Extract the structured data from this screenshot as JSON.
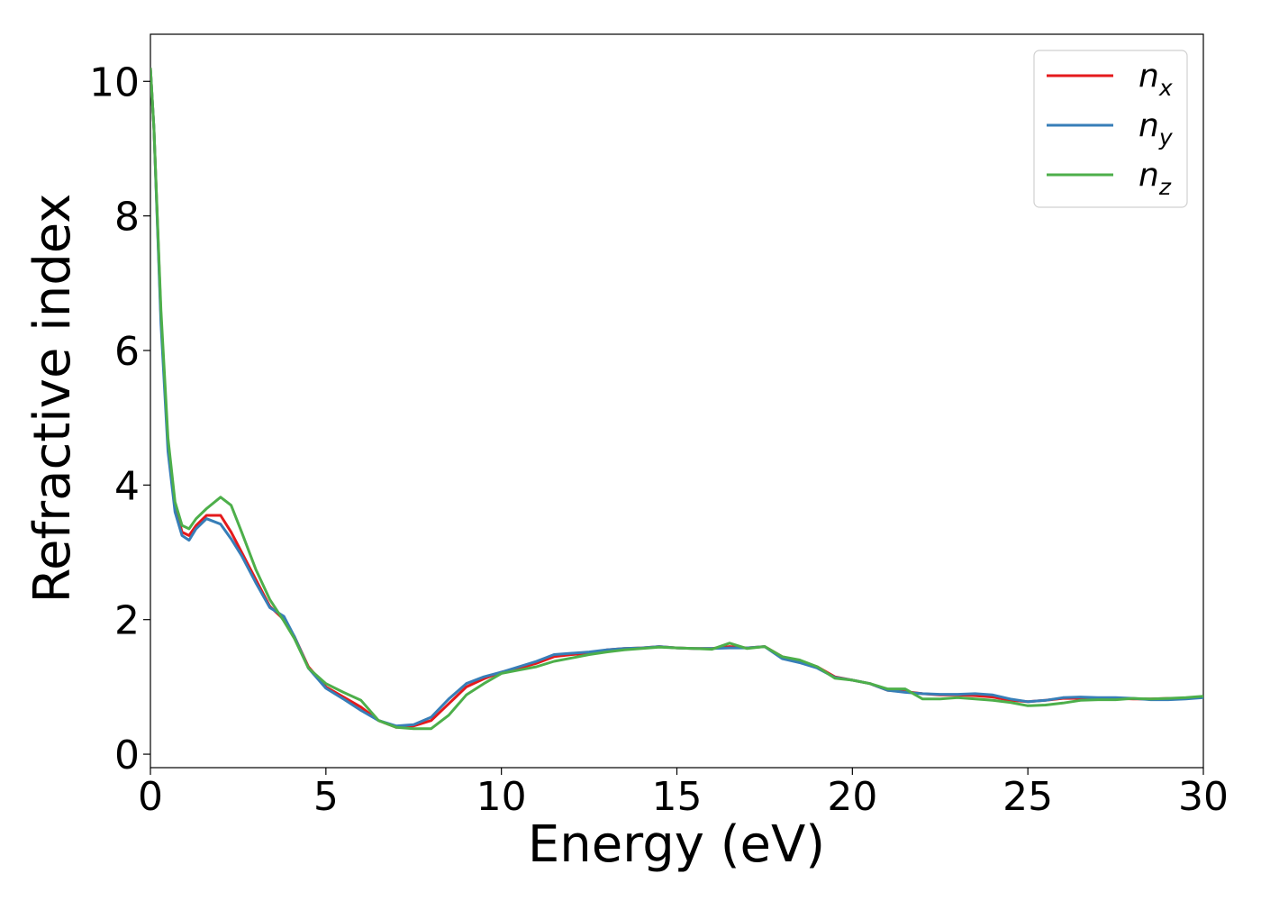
{
  "chart_data": {
    "type": "line",
    "xlabel": "Energy (eV)",
    "ylabel": "Refractive index",
    "xlim": [
      0,
      30
    ],
    "ylim": [
      -0.2,
      10.7
    ],
    "xticks": [
      "0",
      "5",
      "10",
      "15",
      "20",
      "25",
      "30"
    ],
    "yticks": [
      "0",
      "2",
      "4",
      "6",
      "8",
      "10"
    ],
    "grid": false,
    "legend_position": "top-right",
    "series": [
      {
        "name": "n_x",
        "legend_base": "n",
        "legend_sub": "x",
        "color": "#e41a1c",
        "x": [
          0.0,
          0.1,
          0.3,
          0.5,
          0.7,
          0.9,
          1.1,
          1.3,
          1.6,
          2.0,
          2.3,
          2.6,
          3.0,
          3.4,
          3.8,
          4.1,
          4.5,
          5.0,
          5.5,
          6.0,
          6.5,
          7.0,
          7.5,
          8.0,
          8.5,
          9.0,
          9.5,
          10.0,
          10.5,
          11.0,
          11.5,
          12.0,
          12.5,
          13.0,
          13.5,
          14.0,
          14.5,
          15.0,
          15.5,
          16.0,
          16.5,
          17.0,
          17.5,
          18.0,
          18.5,
          19.0,
          19.5,
          20.0,
          20.5,
          21.0,
          21.5,
          22.0,
          22.5,
          23.0,
          23.5,
          24.0,
          24.5,
          25.0,
          25.5,
          26.0,
          26.5,
          27.0,
          27.5,
          28.0,
          28.5,
          29.0,
          29.5,
          30.0
        ],
        "y": [
          10.2,
          9.3,
          6.5,
          4.6,
          3.7,
          3.3,
          3.25,
          3.4,
          3.55,
          3.55,
          3.3,
          3.0,
          2.6,
          2.2,
          2.0,
          1.75,
          1.3,
          1.0,
          0.85,
          0.7,
          0.5,
          0.4,
          0.42,
          0.5,
          0.75,
          1.0,
          1.12,
          1.22,
          1.28,
          1.35,
          1.45,
          1.48,
          1.5,
          1.55,
          1.57,
          1.58,
          1.6,
          1.58,
          1.57,
          1.57,
          1.6,
          1.58,
          1.6,
          1.45,
          1.38,
          1.3,
          1.15,
          1.1,
          1.05,
          0.95,
          0.93,
          0.9,
          0.88,
          0.88,
          0.87,
          0.85,
          0.8,
          0.78,
          0.8,
          0.83,
          0.83,
          0.82,
          0.83,
          0.82,
          0.82,
          0.83,
          0.83,
          0.85
        ]
      },
      {
        "name": "n_y",
        "legend_base": "n",
        "legend_sub": "y",
        "color": "#377eb8",
        "x": [
          0.0,
          0.1,
          0.3,
          0.5,
          0.7,
          0.9,
          1.1,
          1.3,
          1.6,
          2.0,
          2.3,
          2.6,
          3.0,
          3.4,
          3.8,
          4.1,
          4.5,
          5.0,
          5.5,
          6.0,
          6.5,
          7.0,
          7.5,
          8.0,
          8.5,
          9.0,
          9.5,
          10.0,
          10.5,
          11.0,
          11.5,
          12.0,
          12.5,
          13.0,
          13.5,
          14.0,
          14.5,
          15.0,
          15.5,
          16.0,
          16.5,
          17.0,
          17.5,
          18.0,
          18.5,
          19.0,
          19.5,
          20.0,
          20.5,
          21.0,
          21.5,
          22.0,
          22.5,
          23.0,
          23.5,
          24.0,
          24.5,
          25.0,
          25.5,
          26.0,
          26.5,
          27.0,
          27.5,
          28.0,
          28.5,
          29.0,
          29.5,
          30.0
        ],
        "y": [
          10.2,
          9.3,
          6.4,
          4.5,
          3.6,
          3.25,
          3.18,
          3.35,
          3.5,
          3.42,
          3.2,
          2.95,
          2.55,
          2.18,
          2.05,
          1.75,
          1.28,
          0.98,
          0.82,
          0.65,
          0.5,
          0.42,
          0.44,
          0.55,
          0.82,
          1.05,
          1.15,
          1.22,
          1.3,
          1.38,
          1.48,
          1.5,
          1.52,
          1.55,
          1.57,
          1.58,
          1.6,
          1.58,
          1.57,
          1.57,
          1.58,
          1.58,
          1.6,
          1.42,
          1.36,
          1.28,
          1.14,
          1.1,
          1.05,
          0.95,
          0.92,
          0.9,
          0.89,
          0.89,
          0.9,
          0.88,
          0.82,
          0.78,
          0.8,
          0.84,
          0.85,
          0.84,
          0.84,
          0.83,
          0.81,
          0.81,
          0.82,
          0.84
        ]
      },
      {
        "name": "n_z",
        "legend_base": "n",
        "legend_sub": "z",
        "color": "#4daf4a",
        "x": [
          0.0,
          0.1,
          0.3,
          0.5,
          0.7,
          0.9,
          1.1,
          1.3,
          1.6,
          2.0,
          2.3,
          2.6,
          3.0,
          3.4,
          3.8,
          4.1,
          4.5,
          5.0,
          5.5,
          6.0,
          6.5,
          7.0,
          7.5,
          8.0,
          8.5,
          9.0,
          9.5,
          10.0,
          10.5,
          11.0,
          11.5,
          12.0,
          12.5,
          13.0,
          13.5,
          14.0,
          14.5,
          15.0,
          15.5,
          16.0,
          16.5,
          17.0,
          17.5,
          18.0,
          18.5,
          19.0,
          19.5,
          20.0,
          20.5,
          21.0,
          21.5,
          22.0,
          22.5,
          23.0,
          23.5,
          24.0,
          24.5,
          25.0,
          25.5,
          26.0,
          26.5,
          27.0,
          27.5,
          28.0,
          28.5,
          29.0,
          29.5,
          30.0
        ],
        "y": [
          10.2,
          9.3,
          6.6,
          4.7,
          3.75,
          3.4,
          3.35,
          3.5,
          3.65,
          3.82,
          3.7,
          3.3,
          2.75,
          2.3,
          1.98,
          1.72,
          1.28,
          1.05,
          0.92,
          0.8,
          0.5,
          0.4,
          0.38,
          0.38,
          0.58,
          0.88,
          1.05,
          1.2,
          1.25,
          1.3,
          1.38,
          1.43,
          1.48,
          1.52,
          1.55,
          1.57,
          1.59,
          1.58,
          1.57,
          1.56,
          1.65,
          1.57,
          1.6,
          1.45,
          1.4,
          1.3,
          1.13,
          1.1,
          1.05,
          0.97,
          0.97,
          0.82,
          0.82,
          0.84,
          0.82,
          0.8,
          0.77,
          0.72,
          0.73,
          0.76,
          0.8,
          0.81,
          0.81,
          0.83,
          0.82,
          0.83,
          0.84,
          0.86
        ]
      }
    ]
  }
}
